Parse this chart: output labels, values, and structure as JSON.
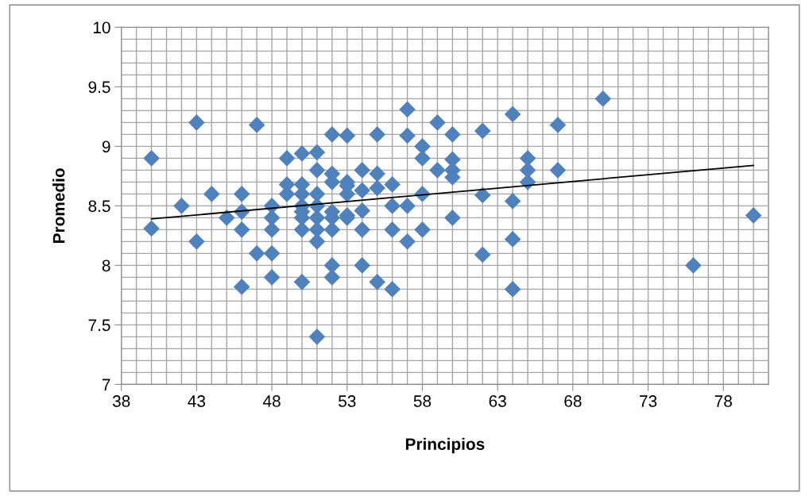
{
  "chart_data": {
    "type": "scatter",
    "xlabel": "Principios",
    "ylabel": "Promedio",
    "xlim": [
      38,
      81
    ],
    "xticks": [
      38,
      43,
      48,
      53,
      58,
      63,
      68,
      73,
      78
    ],
    "ylim": [
      7,
      10
    ],
    "yticks": [
      7,
      7.5,
      8,
      8.5,
      9,
      9.5,
      10
    ],
    "grid": true,
    "marker": "diamond",
    "series": [
      {
        "color": "#4f81bd",
        "x": [
          40,
          40,
          42,
          43,
          43,
          44,
          45,
          46,
          46,
          46,
          46,
          47,
          47,
          48,
          48,
          48,
          48,
          48,
          49,
          49,
          49,
          50,
          50,
          50,
          50,
          50,
          50,
          50,
          50,
          51,
          51,
          51,
          51,
          51,
          51,
          51,
          51,
          52,
          52,
          52,
          52,
          52,
          52,
          52,
          52,
          53,
          53,
          53,
          53,
          53,
          53,
          54,
          54,
          54,
          54,
          54,
          55,
          55,
          55,
          55,
          56,
          56,
          56,
          56,
          57,
          57,
          57,
          57,
          58,
          58,
          58,
          58,
          59,
          59,
          60,
          60,
          60,
          60,
          60,
          62,
          62,
          62,
          64,
          64,
          64,
          64,
          65,
          65,
          65,
          67,
          67,
          70,
          76,
          80
        ],
        "values": [
          8.9,
          8.31,
          8.5,
          9.2,
          8.2,
          8.6,
          8.4,
          8.6,
          8.45,
          8.3,
          7.82,
          9.18,
          8.1,
          8.5,
          8.4,
          8.3,
          8.1,
          7.9,
          8.9,
          8.68,
          8.6,
          8.94,
          8.68,
          8.6,
          8.5,
          8.45,
          8.4,
          8.3,
          7.86,
          8.95,
          8.8,
          8.6,
          8.5,
          8.4,
          8.3,
          8.2,
          7.4,
          9.1,
          8.77,
          8.7,
          8.45,
          8.4,
          8.3,
          8.0,
          7.9,
          9.09,
          8.7,
          8.67,
          8.6,
          8.42,
          8.4,
          8.8,
          8.63,
          8.46,
          8.3,
          8.0,
          9.1,
          8.77,
          8.65,
          7.86,
          8.68,
          8.5,
          8.3,
          7.8,
          9.31,
          9.09,
          8.5,
          8.2,
          9.0,
          8.9,
          8.6,
          8.3,
          9.2,
          8.8,
          9.1,
          8.89,
          8.8,
          8.74,
          8.4,
          9.13,
          8.59,
          8.09,
          9.27,
          8.54,
          8.22,
          7.8,
          8.9,
          8.8,
          8.7,
          9.18,
          8.8,
          9.4,
          8.0,
          8.42
        ]
      },
      {
        "type": "line",
        "color": "#000000",
        "x": [
          40,
          80
        ],
        "values": [
          8.39,
          8.84
        ],
        "marker": "none",
        "line_style": "solid"
      }
    ]
  }
}
